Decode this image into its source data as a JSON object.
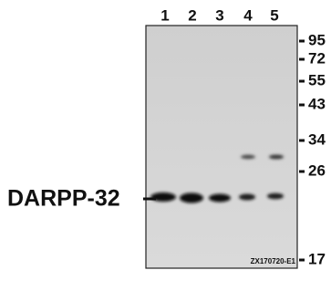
{
  "lanes": [
    "1",
    "2",
    "3",
    "4",
    "5"
  ],
  "markers": [
    "95",
    "72",
    "55",
    "43",
    "34",
    "26",
    "17"
  ],
  "protein": "DARPP-32",
  "code": "ZX170720-E1"
}
